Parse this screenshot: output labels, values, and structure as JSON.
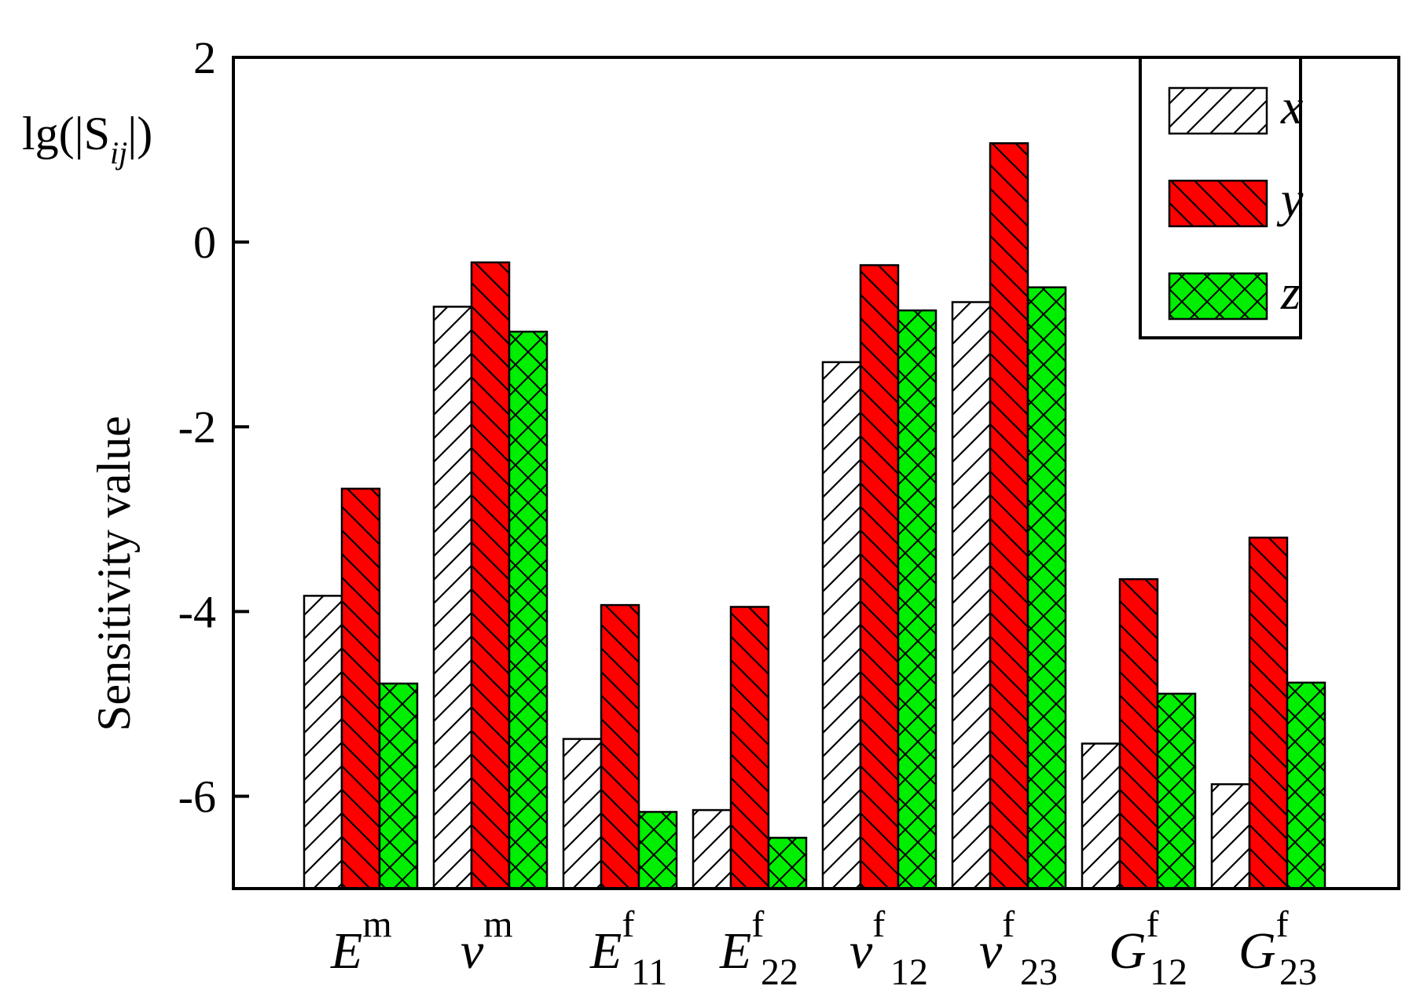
{
  "chart_data": {
    "type": "bar",
    "ylabel": "Sensitivity value",
    "yunit_label": {
      "main": "lg(|S",
      "sub": "ij",
      "close": "|)"
    },
    "ylim": [
      -7,
      2
    ],
    "yticks": [
      2,
      0,
      -2,
      -4,
      -6
    ],
    "ytick_labels": [
      "2",
      "0",
      "-2",
      "-4",
      "-6"
    ],
    "categories": [
      {
        "base": "E",
        "sup": "m",
        "sub": ""
      },
      {
        "base": "v",
        "sup": "m",
        "sub": ""
      },
      {
        "base": "E",
        "sup": "f",
        "sub": "11"
      },
      {
        "base": "E",
        "sup": "f",
        "sub": "22"
      },
      {
        "base": "v",
        "sup": "f",
        "sub": "12"
      },
      {
        "base": "v",
        "sup": "f",
        "sub": "23"
      },
      {
        "base": "G",
        "sup": "f",
        "sub": "12"
      },
      {
        "base": "G",
        "sup": "f",
        "sub": "23"
      }
    ],
    "series": [
      {
        "name": "x",
        "color": "#ffffff",
        "hatch": "forward-diagonal",
        "values": [
          -3.83,
          -0.7,
          -5.38,
          -6.15,
          -1.3,
          -0.65,
          -5.43,
          -5.87
        ]
      },
      {
        "name": "y",
        "color": "#ff0000",
        "hatch": "back-diagonal",
        "values": [
          -2.67,
          -0.22,
          -3.93,
          -3.95,
          -0.25,
          1.07,
          -3.65,
          -3.2
        ]
      },
      {
        "name": "z",
        "color": "#00ee00",
        "hatch": "crosshatch",
        "values": [
          -4.78,
          -0.97,
          -6.17,
          -6.45,
          -0.74,
          -0.49,
          -4.89,
          -4.77
        ]
      }
    ],
    "legend": {
      "position": "top-right"
    },
    "grid": false
  }
}
